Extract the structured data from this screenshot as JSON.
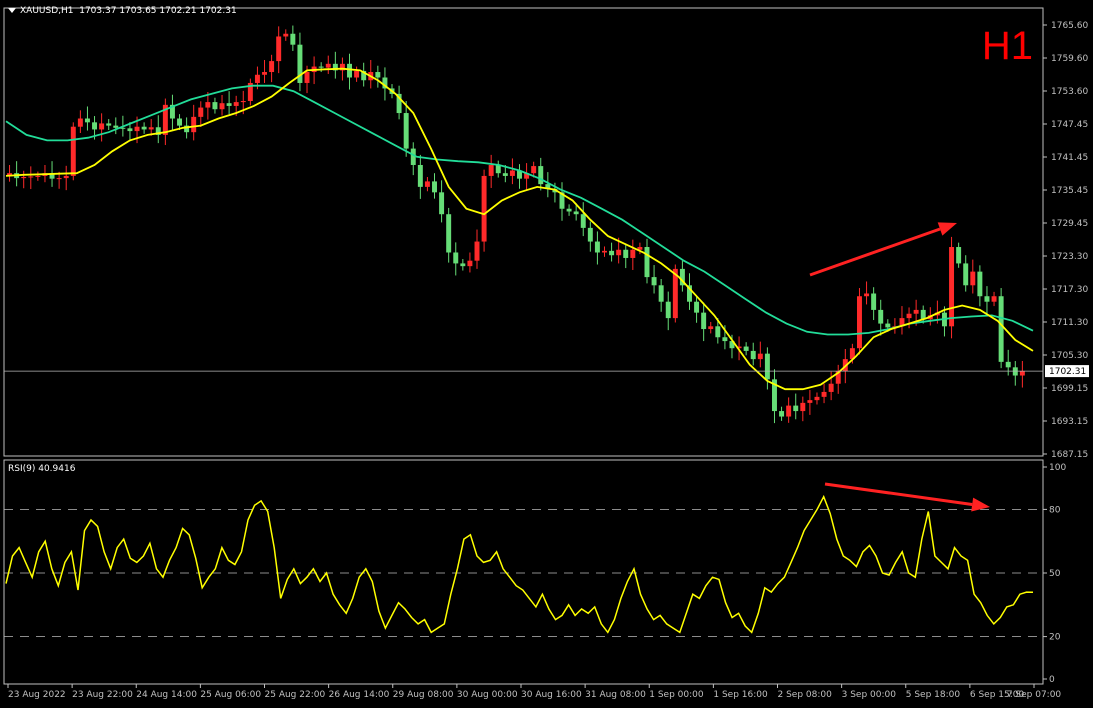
{
  "header": {
    "symbol": "XAUUSD,H1",
    "ohlc": "1703.37 1703.65 1702.21 1702.31",
    "timeframe_label": "H1"
  },
  "rsi_header": "RSI(9) 40.9416",
  "current_price_label": "1702.31",
  "colors": {
    "background": "#000000",
    "bull": "#ff2a2a",
    "bear": "#66dd77",
    "ma_fast": "#ffff00",
    "ma_slow": "#22dd99",
    "rsi": "#ffff00",
    "arrow": "#ff2222",
    "axis": "#c0c0c0"
  },
  "chart_data": [
    {
      "type": "candlestick",
      "symbol": "XAUUSD",
      "timeframe": "H1",
      "ylim": [
        1687.15,
        1765.6
      ],
      "y_ticks": [
        "1765.60",
        "1759.60",
        "1753.60",
        "1747.45",
        "1741.45",
        "1735.45",
        "1729.45",
        "1723.30",
        "1717.30",
        "1711.30",
        "1705.30",
        "1699.15",
        "1693.15",
        "1687.15"
      ],
      "current_price": 1702.31,
      "x_ticks": [
        "23 Aug 2022",
        "23 Aug 22:00",
        "24 Aug 14:00",
        "25 Aug 06:00",
        "25 Aug 22:00",
        "26 Aug 14:00",
        "29 Aug 08:00",
        "30 Aug 00:00",
        "30 Aug 16:00",
        "31 Aug 08:00",
        "1 Sep 00:00",
        "1 Sep 16:00",
        "2 Sep 08:00",
        "3 Sep 00:00",
        "5 Sep 18:00",
        "6 Sep 15:00",
        "7 Sep 07:00"
      ],
      "price_path": [
        1738.1,
        1738.5,
        1737.6,
        1737.8,
        1737.9,
        1738.0,
        1738.5,
        1737.5,
        1737.6,
        1738.0,
        1747.0,
        1748.5,
        1747.8,
        1746.5,
        1747.6,
        1747.2,
        1746.8,
        1746.7,
        1746.2,
        1747.0,
        1746.5,
        1746.9,
        1745.5,
        1751.0,
        1748.5,
        1747.2,
        1746.0,
        1748.8,
        1750.5,
        1751.5,
        1750.2,
        1751.3,
        1750.8,
        1751.5,
        1751.7,
        1755.0,
        1756.5,
        1757.0,
        1759.0,
        1763.5,
        1764.0,
        1762.0,
        1755.0,
        1757.0,
        1758.0,
        1757.8,
        1758.5,
        1757.3,
        1758.5,
        1756.0,
        1757.2,
        1755.5,
        1757.0,
        1756.0,
        1754.0,
        1753.0,
        1749.5,
        1743.0,
        1740.0,
        1736.0,
        1737.0,
        1735.0,
        1731.0,
        1724.0,
        1722.0,
        1721.5,
        1722.5,
        1726.0,
        1738.0,
        1740.0,
        1738.5,
        1738.0,
        1739.0,
        1737.5,
        1738.5,
        1739.8,
        1736.5,
        1735.6,
        1735.0,
        1732.0,
        1731.5,
        1731.0,
        1728.5,
        1726.0,
        1724.0,
        1724.3,
        1723.5,
        1724.5,
        1723.0,
        1724.5,
        1725.0,
        1719.5,
        1718.0,
        1715.0,
        1712.0,
        1721.0,
        1718.0,
        1715.0,
        1713.0,
        1710.0,
        1710.5,
        1708.5,
        1707.8,
        1706.5,
        1706.8,
        1706.0,
        1704.5,
        1705.5,
        1700.8,
        1695.0,
        1694.0,
        1696.0,
        1695.0,
        1696.5,
        1697.0,
        1697.6,
        1698.5,
        1700.0,
        1702.3,
        1704.5,
        1706.5,
        1716.0,
        1716.5,
        1713.5,
        1711.0,
        1710.3,
        1710.5,
        1712.0,
        1712.8,
        1713.5,
        1711.8,
        1712.5,
        1713.0,
        1710.5,
        1725.0,
        1722.0,
        1718.0,
        1720.5,
        1716.0,
        1715.0,
        1716.0,
        1704.0,
        1703.0,
        1701.5,
        1702.31
      ],
      "ma_fast_path": [
        1738.0,
        1738.2,
        1738.3,
        1738.4,
        1738.5,
        1740.0,
        1742.5,
        1744.5,
        1745.5,
        1746.0,
        1746.8,
        1747.2,
        1748.5,
        1749.5,
        1750.8,
        1752.5,
        1755.0,
        1757.3,
        1757.5,
        1757.6,
        1757.3,
        1755.5,
        1753.0,
        1749.5,
        1743.0,
        1736.0,
        1732.0,
        1731.0,
        1733.5,
        1735.0,
        1736.0,
        1735.5,
        1733.5,
        1730.0,
        1727.0,
        1725.5,
        1724.0,
        1722.0,
        1719.5,
        1716.0,
        1712.5,
        1708.0,
        1703.5,
        1700.5,
        1699.0,
        1699.0,
        1699.8,
        1702.0,
        1705.0,
        1708.5,
        1710.0,
        1711.0,
        1712.0,
        1713.5,
        1714.3,
        1713.5,
        1711.5,
        1708.0,
        1706.0
      ],
      "ma_slow_path": [
        1748.0,
        1745.5,
        1744.5,
        1744.5,
        1745.0,
        1746.0,
        1747.5,
        1749.0,
        1750.5,
        1752.0,
        1753.0,
        1754.0,
        1754.5,
        1754.5,
        1753.5,
        1751.5,
        1749.5,
        1747.5,
        1745.5,
        1743.5,
        1741.5,
        1741.0,
        1740.7,
        1740.5,
        1740.0,
        1739.0,
        1737.5,
        1735.5,
        1734.0,
        1732.0,
        1730.0,
        1727.5,
        1725.0,
        1722.5,
        1720.5,
        1718.0,
        1715.5,
        1713.0,
        1711.0,
        1709.5,
        1709.0,
        1709.0,
        1709.3,
        1710.0,
        1711.0,
        1711.5,
        1712.0,
        1712.3,
        1712.5,
        1711.5,
        1709.7
      ]
    },
    {
      "type": "line",
      "name": "RSI(9)",
      "ylim": [
        0,
        100
      ],
      "y_ticks": [
        100,
        80,
        50,
        20,
        0
      ],
      "levels": [
        80,
        50,
        20
      ],
      "last_value": 40.9416,
      "values": [
        45,
        58,
        62,
        55,
        48,
        60,
        65,
        52,
        44,
        55,
        60,
        42,
        70,
        75,
        72,
        60,
        52,
        62,
        66,
        57,
        55,
        58,
        64,
        52,
        48,
        56,
        62,
        71,
        68,
        57,
        43,
        48,
        52,
        62,
        56,
        54,
        60,
        75,
        82,
        84,
        79,
        62,
        38,
        47,
        52,
        45,
        48,
        52,
        46,
        50,
        40,
        35,
        31,
        38,
        48,
        52,
        46,
        32,
        24,
        30,
        36,
        33,
        29,
        26,
        28,
        22,
        24,
        26,
        40,
        52,
        66,
        68,
        58,
        55,
        56,
        60,
        52,
        48,
        44,
        42,
        38,
        34,
        40,
        33,
        28,
        30,
        35,
        30,
        33,
        31,
        34,
        26,
        22,
        28,
        38,
        46,
        52,
        40,
        33,
        28,
        30,
        26,
        24,
        22,
        31,
        40,
        38,
        44,
        48,
        47,
        36,
        29,
        31,
        25,
        22,
        31,
        43,
        41,
        45,
        48,
        55,
        62,
        70,
        75,
        80,
        86,
        78,
        66,
        58,
        56,
        53,
        60,
        63,
        58,
        50,
        49,
        55,
        60,
        50,
        48,
        66,
        79,
        58,
        55,
        52,
        62,
        58,
        56,
        40,
        36,
        30,
        26,
        29,
        34,
        35,
        40,
        41.0,
        40.9416
      ]
    }
  ],
  "annotations": [
    {
      "kind": "arrow",
      "panel": "price",
      "direction": "up-right"
    },
    {
      "kind": "arrow",
      "panel": "rsi",
      "direction": "down-right"
    }
  ]
}
